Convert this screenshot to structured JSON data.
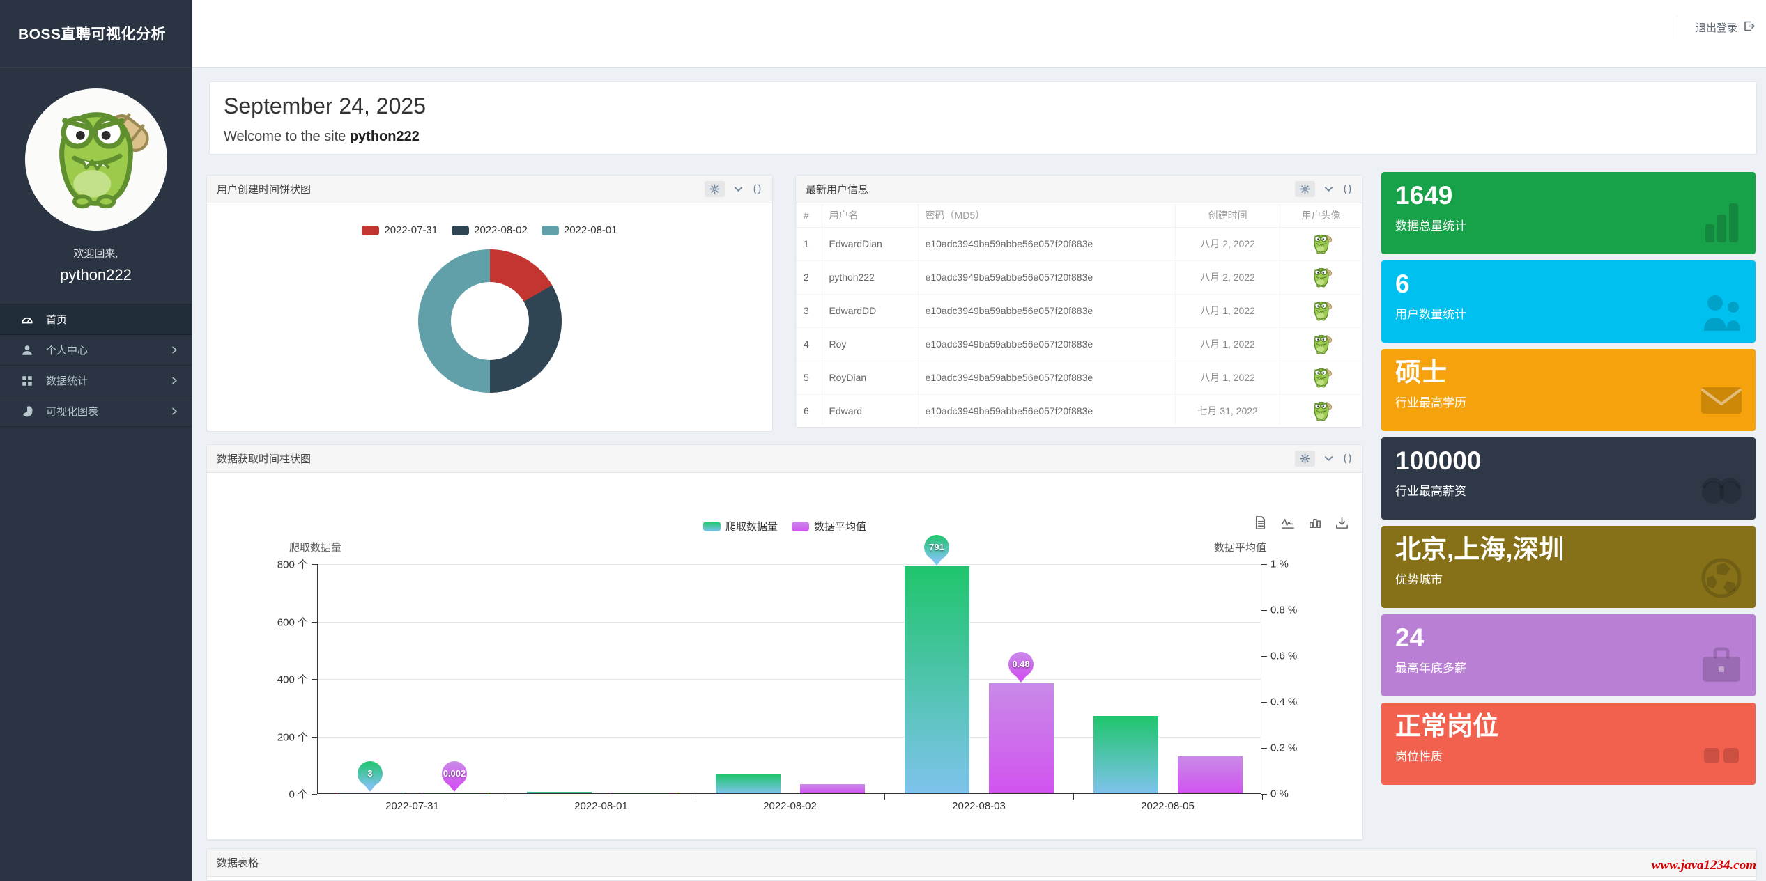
{
  "app": {
    "brand": "BOSS直聘可视化分析"
  },
  "header": {
    "logout_label": "退出登录"
  },
  "sidebar": {
    "welcome_back": "欢迎回来,",
    "username": "python222",
    "menu": [
      {
        "key": "home",
        "label": "首页",
        "icon": "dashboard-icon",
        "active": true,
        "has_submenu": false
      },
      {
        "key": "personal-center",
        "label": "个人中心",
        "icon": "user-icon",
        "active": false,
        "has_submenu": true
      },
      {
        "key": "data-statistics",
        "label": "数据统计",
        "icon": "grid-icon",
        "active": false,
        "has_submenu": true
      },
      {
        "key": "visual-charts",
        "label": "可视化图表",
        "icon": "pie-icon",
        "active": false,
        "has_submenu": true
      }
    ]
  },
  "welcome": {
    "date": "September 24, 2025",
    "message_prefix": "Welcome to the site ",
    "username": "python222"
  },
  "pie_panel": {
    "title": "用户创建时间饼状图"
  },
  "users_panel": {
    "title": "最新用户信息",
    "columns": [
      "#",
      "用户名",
      "密码（MD5）",
      "创建时间",
      "用户头像"
    ],
    "rows": [
      {
        "index": "1",
        "username": "EdwardDian",
        "password_md5": "e10adc3949ba59abbe56e057f20f883e",
        "created": "八月 2, 2022"
      },
      {
        "index": "2",
        "username": "python222",
        "password_md5": "e10adc3949ba59abbe56e057f20f883e",
        "created": "八月 2, 2022"
      },
      {
        "index": "3",
        "username": "EdwardDD",
        "password_md5": "e10adc3949ba59abbe56e057f20f883e",
        "created": "八月 1, 2022"
      },
      {
        "index": "4",
        "username": "Roy",
        "password_md5": "e10adc3949ba59abbe56e057f20f883e",
        "created": "八月 1, 2022"
      },
      {
        "index": "5",
        "username": "RoyDian",
        "password_md5": "e10adc3949ba59abbe56e057f20f883e",
        "created": "八月 1, 2022"
      },
      {
        "index": "6",
        "username": "Edward",
        "password_md5": "e10adc3949ba59abbe56e057f20f883e",
        "created": "七月 31, 2022"
      }
    ]
  },
  "bar_panel": {
    "title": "数据获取时间柱状图"
  },
  "bottom_panel": {
    "title": "数据表格"
  },
  "stat_cards": [
    {
      "key": "total-data",
      "value": "1649",
      "label": "数据总量统计",
      "color": "#17a24a",
      "icon": "bar-chart-icon"
    },
    {
      "key": "user-count",
      "value": "6",
      "label": "用户数量统计",
      "color": "#00c0ef",
      "icon": "users-icon"
    },
    {
      "key": "top-education",
      "value": "硕士",
      "label": "行业最高学历",
      "color": "#f5a20d",
      "icon": "envelope-icon"
    },
    {
      "key": "top-salary",
      "value": "100000",
      "label": "行业最高薪资",
      "color": "#2e3847",
      "icon": "coins-icon"
    },
    {
      "key": "top-cities",
      "value": "北京,上海,深圳",
      "label": "优势城市",
      "color": "#867118",
      "icon": "globe-icon"
    },
    {
      "key": "max-year-end-bonus",
      "value": "24",
      "label": "最高年底多薪",
      "color": "#b87fd4",
      "icon": "briefcase-icon"
    },
    {
      "key": "job-nature",
      "value": "正常岗位",
      "label": "岗位性质",
      "color": "#f2604e",
      "icon": "boxes-icon"
    }
  ],
  "watermark": "www.java1234.com",
  "chart_data": [
    {
      "id": "user-created-pie",
      "type": "pie",
      "title": "用户创建时间饼状图",
      "donut": true,
      "legend_position": "top",
      "labels": [
        "2022-07-31",
        "2022-08-02",
        "2022-08-01"
      ],
      "values": [
        1,
        2,
        3
      ],
      "colors": [
        "#c23531",
        "#2f4554",
        "#61a0a8"
      ]
    },
    {
      "id": "data-fetch-bar",
      "type": "bar",
      "title": "数据获取时间柱状图",
      "categories": [
        "2022-07-31",
        "2022-08-01",
        "2022-08-02",
        "2022-08-03",
        "2022-08-05"
      ],
      "series": [
        {
          "name": "爬取数据量",
          "axis": "left",
          "unit": "个",
          "values": [
            3,
            5,
            65,
            791,
            270
          ],
          "gradient": [
            "#1fc56c",
            "#7ec3ec"
          ],
          "markpoints": [
            {
              "type": "max",
              "category": "2022-08-03",
              "label": "791"
            },
            {
              "type": "min",
              "category": "2022-07-31",
              "label": "3"
            }
          ]
        },
        {
          "name": "数据平均值",
          "axis": "right",
          "unit": "%",
          "values": [
            0.002,
            0.004,
            0.04,
            0.48,
            0.16
          ],
          "gradient": [
            "#c98ae7",
            "#d153f0"
          ],
          "markpoints": [
            {
              "type": "max",
              "category": "2022-08-03",
              "label": "0.48"
            },
            {
              "type": "min",
              "category": "2022-07-31",
              "label": "0.002"
            }
          ]
        }
      ],
      "left_axis": {
        "name": "爬取数据量",
        "max": 800,
        "tick_labels": [
          "800 个",
          "600 个",
          "400 个",
          "200 个",
          "0 个"
        ]
      },
      "right_axis": {
        "name": "数据平均值",
        "max": 1,
        "tick_labels": [
          "1 %",
          "0.8 %",
          "0.6 %",
          "0.4 %",
          "0.2 %",
          "0 %"
        ]
      },
      "legend": [
        "爬取数据量",
        "数据平均值"
      ],
      "toolbox": [
        "data-view-icon",
        "line-chart-toggle-icon",
        "bar-chart-toggle-icon",
        "download-icon"
      ],
      "grid": true
    }
  ]
}
